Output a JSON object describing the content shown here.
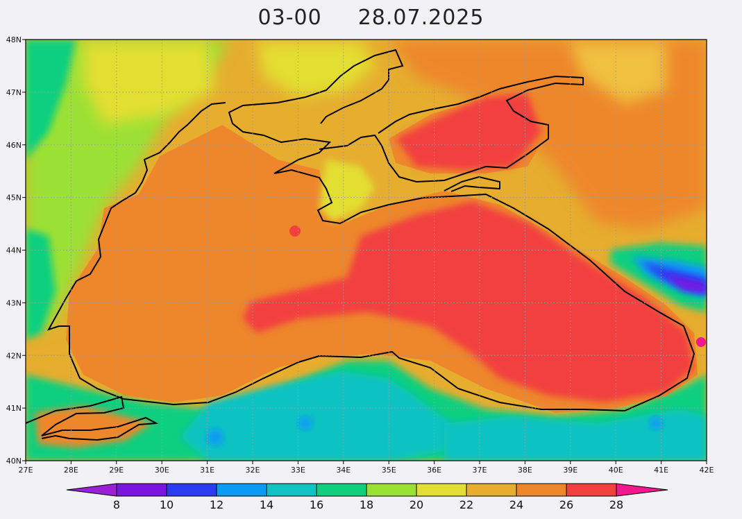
{
  "title": {
    "time": "03-00",
    "date": "28.07.2025"
  },
  "map": {
    "region": "Black Sea",
    "variable": "sea surface temperature",
    "lon_range": [
      27,
      42
    ],
    "lat_range": [
      40,
      48
    ],
    "grid": true,
    "lon_ticks": [
      "27E",
      "28E",
      "29E",
      "30E",
      "31E",
      "32E",
      "33E",
      "34E",
      "35E",
      "36E",
      "37E",
      "38E",
      "39E",
      "40E",
      "41E",
      "42E"
    ],
    "lat_ticks": [
      "48N",
      "47N",
      "46N",
      "45N",
      "44N",
      "43N",
      "42N",
      "41N",
      "40N"
    ]
  },
  "colorbar": {
    "labels": [
      "8",
      "10",
      "12",
      "14",
      "16",
      "18",
      "20",
      "22",
      "24",
      "26",
      "28"
    ],
    "colors": [
      "#9b1fd6",
      "#7a14e0",
      "#2a3cf2",
      "#0a9bf5",
      "#11c2c2",
      "#0fcf7f",
      "#9be035",
      "#e3de33",
      "#e6ad2f",
      "#ee872b",
      "#f2403f",
      "#f0188c"
    ]
  }
}
